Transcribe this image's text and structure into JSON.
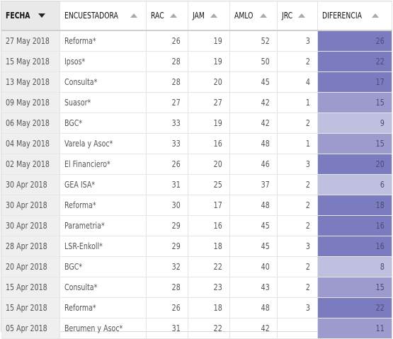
{
  "columns": [
    "FECHA",
    "ENCUESTADORA",
    "RAC",
    "JAM",
    "AMLO",
    "JRC",
    "DIFERENCIA"
  ],
  "sort": {
    "column": "FECHA",
    "direction": "desc"
  },
  "colors": {
    "diff_high": "#7b7bc0",
    "diff_mid": "#9d9acd",
    "diff_low": "#bfbfe0"
  },
  "rows": [
    {
      "fecha": "27 May 2018",
      "encuestadora": "Reforma*",
      "rac": "26",
      "jam": "19",
      "amlo": "52",
      "jrc": "3",
      "diferencia": "26"
    },
    {
      "fecha": "15 May 2018",
      "encuestadora": "Ipsos*",
      "rac": "28",
      "jam": "19",
      "amlo": "50",
      "jrc": "2",
      "diferencia": "22"
    },
    {
      "fecha": "13 May 2018",
      "encuestadora": "Consulta*",
      "rac": "28",
      "jam": "20",
      "amlo": "45",
      "jrc": "4",
      "diferencia": "17"
    },
    {
      "fecha": "09 May 2018",
      "encuestadora": "Suasor*",
      "rac": "27",
      "jam": "27",
      "amlo": "42",
      "jrc": "1",
      "diferencia": "15"
    },
    {
      "fecha": "06 May 2018",
      "encuestadora": "BGC*",
      "rac": "33",
      "jam": "19",
      "amlo": "42",
      "jrc": "2",
      "diferencia": "9"
    },
    {
      "fecha": "04 May 2018",
      "encuestadora": "Varela y Asoc*",
      "rac": "33",
      "jam": "16",
      "amlo": "48",
      "jrc": "1",
      "diferencia": "15"
    },
    {
      "fecha": "02 May 2018",
      "encuestadora": "El Financiero*",
      "rac": "26",
      "jam": "20",
      "amlo": "46",
      "jrc": "3",
      "diferencia": "20"
    },
    {
      "fecha": "30 Apr 2018",
      "encuestadora": "GEA ISA*",
      "rac": "31",
      "jam": "25",
      "amlo": "37",
      "jrc": "2",
      "diferencia": "6"
    },
    {
      "fecha": "30 Apr 2018",
      "encuestadora": "Reforma*",
      "rac": "30",
      "jam": "17",
      "amlo": "48",
      "jrc": "2",
      "diferencia": "18"
    },
    {
      "fecha": "30 Apr 2018",
      "encuestadora": "Parametria*",
      "rac": "29",
      "jam": "16",
      "amlo": "45",
      "jrc": "2",
      "diferencia": "16"
    },
    {
      "fecha": "28 Apr 2018",
      "encuestadora": "LSR-Enkoll*",
      "rac": "29",
      "jam": "18",
      "amlo": "45",
      "jrc": "3",
      "diferencia": "16"
    },
    {
      "fecha": "20 Apr 2018",
      "encuestadora": "BGC*",
      "rac": "32",
      "jam": "22",
      "amlo": "40",
      "jrc": "2",
      "diferencia": "8"
    },
    {
      "fecha": "15 Apr 2018",
      "encuestadora": "Consulta*",
      "rac": "28",
      "jam": "23",
      "amlo": "43",
      "jrc": "2",
      "diferencia": "15"
    },
    {
      "fecha": "15 Apr 2018",
      "encuestadora": "Reforma*",
      "rac": "26",
      "jam": "18",
      "amlo": "48",
      "jrc": "3",
      "diferencia": "22"
    },
    {
      "fecha": "05 Apr 2018",
      "encuestadora": "Berumen y Asoc*",
      "rac": "31",
      "jam": "22",
      "amlo": "42",
      "jrc": "",
      "diferencia": "11"
    }
  ]
}
